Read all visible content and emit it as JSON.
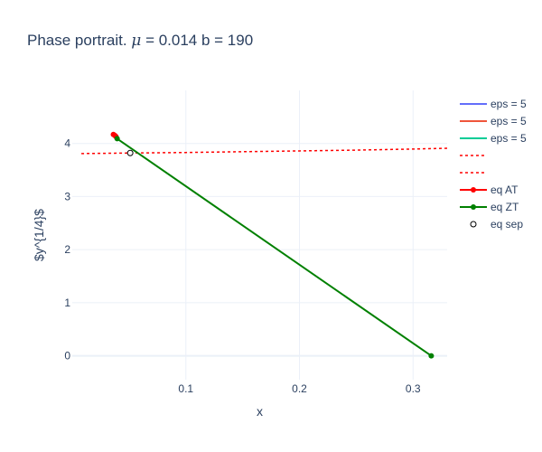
{
  "chart_data": {
    "type": "scatter",
    "title": "Phase portrait. μ = 0.014 b = 190",
    "title_parts": {
      "prefix": "Phase portrait. ",
      "mu": "μ",
      "rest": " = 0.014 b = 190"
    },
    "xlabel": "x",
    "ylabel": "$y^{1/4}$",
    "xlim": [
      0.0,
      0.33
    ],
    "ylim": [
      -0.45,
      5.0
    ],
    "x_ticks": [
      {
        "value": 0.1,
        "label": "0.1"
      },
      {
        "value": 0.2,
        "label": "0.2"
      },
      {
        "value": 0.3,
        "label": "0.3"
      }
    ],
    "y_ticks": [
      {
        "value": 0,
        "label": "0"
      },
      {
        "value": 1,
        "label": "1"
      },
      {
        "value": 2,
        "label": "2"
      },
      {
        "value": 3,
        "label": "3"
      },
      {
        "value": 4,
        "label": "4"
      }
    ],
    "grid": true,
    "legend_position": "right",
    "series": [
      {
        "name": "eps = 5",
        "mode": "lines",
        "color": "#636efa",
        "x": [
          0.0385,
          0.038
        ],
        "y": [
          4.11,
          4.13
        ]
      },
      {
        "name": "eps = 5",
        "mode": "lines",
        "color": "#ef553b",
        "x": [
          0.0355,
          0.0375,
          0.039
        ],
        "y": [
          4.18,
          4.15,
          4.12
        ]
      },
      {
        "name": "eps = 5",
        "mode": "lines",
        "color": "#00cc96",
        "x": [
          0.0385,
          0.0395,
          0.04
        ],
        "y": [
          4.12,
          4.1,
          4.08
        ]
      },
      {
        "name": "",
        "mode": "dashed-line",
        "color": "#ff0000",
        "x": [
          0.008,
          0.05,
          0.1,
          0.15,
          0.2,
          0.25,
          0.3,
          0.33
        ],
        "y": [
          3.81,
          3.82,
          3.83,
          3.845,
          3.86,
          3.875,
          3.895,
          3.91
        ]
      },
      {
        "name": "",
        "mode": "dashed-line",
        "color": "#ff0000",
        "x": [
          0.035,
          0.0375
        ],
        "y": [
          4.17,
          4.14
        ]
      },
      {
        "name": "eq AT",
        "mode": "lines+markers",
        "color": "#ff0000",
        "x": [
          0.0362,
          0.0375,
          0.0385
        ],
        "y": [
          4.17,
          4.15,
          4.13
        ]
      },
      {
        "name": "eq ZT",
        "mode": "lines+markers",
        "color": "#008000",
        "x": [
          0.0395,
          0.316
        ],
        "y": [
          4.09,
          0.0
        ]
      },
      {
        "name": "eq sep",
        "mode": "markers-open",
        "color": "#000000",
        "x": [
          0.051
        ],
        "y": [
          3.82
        ]
      }
    ]
  }
}
